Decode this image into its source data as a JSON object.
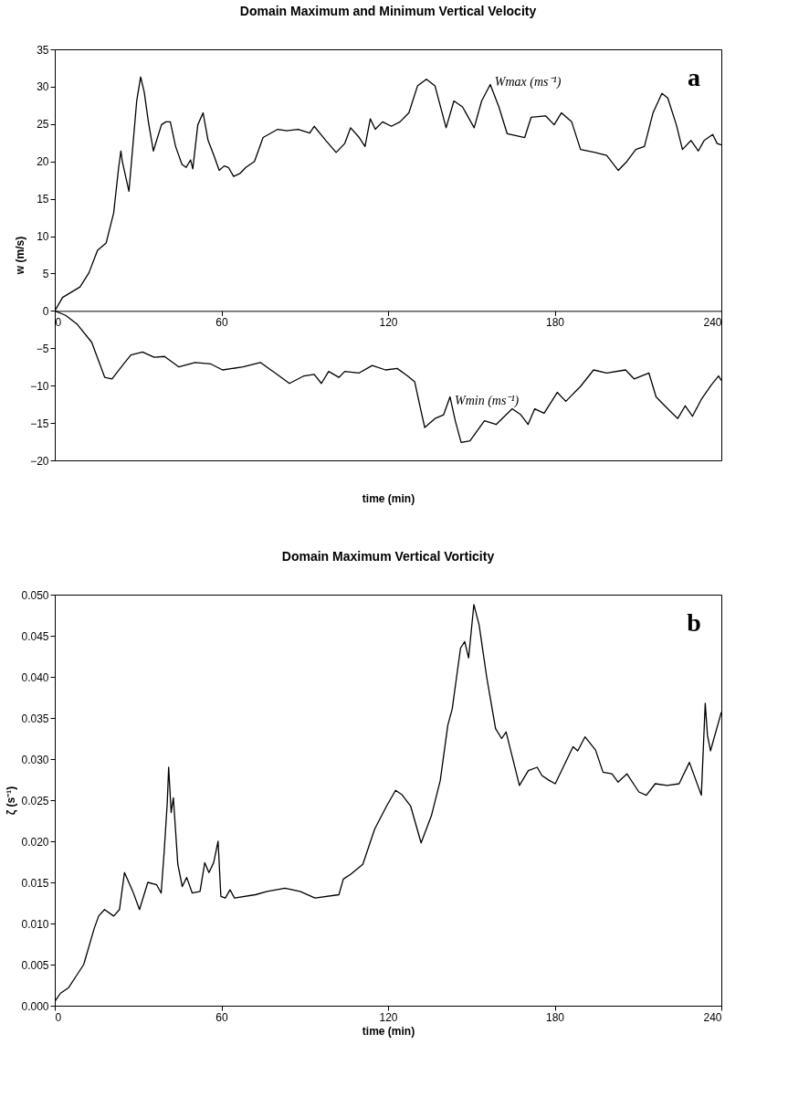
{
  "chart_data": [
    {
      "type": "line",
      "title": "Domain Maximum and Minimum Vertical Velocity",
      "xlabel": "time (min)",
      "ylabel": "w (m/s)",
      "annotations": [
        "a"
      ],
      "xlim": [
        0,
        240
      ],
      "xticks": [
        0,
        60,
        120,
        180,
        240
      ],
      "ylim": [
        -20,
        35
      ],
      "yticks": [
        -20,
        -15,
        -10,
        -5,
        0,
        5,
        10,
        15,
        20,
        25,
        30,
        35
      ],
      "series": [
        {
          "name": "Wmax (ms⁻¹)",
          "color": "#000000",
          "x": [
            0,
            2.8,
            9.1,
            12.3,
            15.4,
            18.5,
            21.2,
            23,
            23.8,
            24.3,
            26.7,
            29.5,
            30.9,
            32.2,
            33.7,
            35.5,
            38.4,
            40,
            41.6,
            43.5,
            45.8,
            47.3,
            48.9,
            49.7,
            51.5,
            53.4,
            55.2,
            57.3,
            59.2,
            61,
            62.5,
            64.4,
            66.7,
            68.8,
            71.9,
            75,
            80.3,
            83.5,
            87.6,
            91.8,
            93.4,
            97.6,
            101.3,
            104.4,
            106.5,
            109.6,
            111.7,
            113.6,
            115.4,
            118,
            121.2,
            124.3,
            127.5,
            130.6,
            133.8,
            136.9,
            140.9,
            143.7,
            146.8,
            151,
            153.7,
            156.8,
            159.9,
            162.9,
            169.2,
            171.5,
            176.7,
            179.8,
            182.4,
            186.1,
            189.3,
            194.5,
            198.7,
            202.9,
            206,
            209.2,
            212.3,
            215.4,
            218.6,
            220.7,
            223.8,
            226,
            229.1,
            231.7,
            233.8,
            236.9,
            238.5,
            240
          ],
          "values": [
            0,
            1.8,
            3.2,
            5.1,
            8.1,
            9.1,
            13.1,
            19.2,
            21.4,
            20,
            16,
            28.1,
            31.3,
            29.3,
            25.3,
            21.4,
            24.9,
            25.3,
            25.3,
            22,
            19.6,
            19.2,
            20.2,
            19,
            24.9,
            26.5,
            22.8,
            20.8,
            18.8,
            19.4,
            19.2,
            18,
            18.4,
            19.2,
            20,
            23.2,
            24.3,
            24.1,
            24.3,
            23.8,
            24.7,
            22.8,
            21.2,
            22.4,
            24.5,
            23.2,
            22,
            25.7,
            24.3,
            25.3,
            24.7,
            25.3,
            26.5,
            30.1,
            31,
            30.1,
            24.5,
            28.1,
            27.3,
            24.5,
            28.1,
            30.3,
            27.3,
            23.7,
            23.2,
            25.9,
            26.1,
            24.9,
            26.5,
            25.3,
            21.6,
            21.2,
            20.8,
            18.8,
            20,
            21.6,
            22,
            26.5,
            29.1,
            28.5,
            24.9,
            21.6,
            22.8,
            21.4,
            22.8,
            23.6,
            22.4,
            22.2
          ]
        },
        {
          "name": "Wmin (ms⁻¹)",
          "color": "#000000",
          "x": [
            0,
            3.9,
            8.1,
            13.3,
            18,
            20.6,
            24.8,
            27.4,
            31.6,
            35.8,
            39.5,
            44.7,
            50.5,
            56.2,
            60.4,
            67.8,
            74,
            79.3,
            84.5,
            89.7,
            93.4,
            96,
            98.6,
            102.3,
            104.4,
            109.6,
            114.3,
            119.1,
            123.3,
            127,
            129.6,
            131.7,
            133.2,
            136.9,
            140,
            142.3,
            144.2,
            146.3,
            149.5,
            154.7,
            158.9,
            164.7,
            167.8,
            170.4,
            172.8,
            176.2,
            180.9,
            184,
            189.3,
            194,
            198.7,
            205.5,
            208.6,
            213.9,
            216.5,
            220.7,
            224.3,
            227,
            229.6,
            232.7,
            236.4,
            239,
            240
          ],
          "values": [
            0,
            -0.6,
            -1.8,
            -4.2,
            -8.9,
            -9.1,
            -7.1,
            -5.9,
            -5.5,
            -6.2,
            -6.1,
            -7.5,
            -6.9,
            -7.1,
            -7.9,
            -7.5,
            -6.9,
            -8.3,
            -9.7,
            -8.7,
            -8.5,
            -9.7,
            -8.1,
            -8.9,
            -8.1,
            -8.3,
            -7.3,
            -7.9,
            -7.7,
            -8.7,
            -9.5,
            -13.1,
            -15.6,
            -14.4,
            -13.9,
            -11.5,
            -14.7,
            -17.6,
            -17.4,
            -14.7,
            -15.2,
            -13.1,
            -13.9,
            -15.2,
            -13.1,
            -13.7,
            -10.9,
            -12.1,
            -10.1,
            -7.9,
            -8.3,
            -7.9,
            -9.1,
            -8.3,
            -11.5,
            -13.1,
            -14.4,
            -12.7,
            -14.1,
            -11.9,
            -9.9,
            -8.7,
            -9.3
          ]
        }
      ]
    },
    {
      "type": "line",
      "title": "Domain Maximum Vertical Vorticity",
      "xlabel": "time (min)",
      "ylabel": "ζ (s⁻¹)",
      "annotations": [
        "b"
      ],
      "xlim": [
        0,
        240
      ],
      "xticks": [
        0,
        60,
        120,
        180,
        240
      ],
      "ylim": [
        0,
        0.05
      ],
      "yticks": [
        {
          "value": 0,
          "label": "0.000"
        },
        {
          "value": 0.005,
          "label": "0.005"
        },
        {
          "value": 0.01,
          "label": "0.010"
        },
        {
          "value": 0.015,
          "label": "0.015"
        },
        {
          "value": 0.02,
          "label": "0.020"
        },
        {
          "value": 0.025,
          "label": "0.025"
        },
        {
          "value": 0.03,
          "label": "0.030"
        },
        {
          "value": 0.035,
          "label": "0.035"
        },
        {
          "value": 0.04,
          "label": "0.040"
        },
        {
          "value": 0.045,
          "label": "0.045"
        },
        {
          "value": 0.05,
          "label": "0.050"
        }
      ],
      "series": [
        {
          "color": "#000000",
          "x": [
            0,
            2,
            5,
            7.5,
            10.4,
            14.2,
            15.8,
            17.9,
            21.2,
            23.3,
            25.1,
            28.1,
            30.5,
            33.5,
            36.7,
            38.3,
            39.4,
            40.5,
            41,
            41.9,
            42.7,
            44.3,
            45.9,
            47.5,
            49.5,
            52.3,
            54,
            55.5,
            57.2,
            58.8,
            59.8,
            61.4,
            63.1,
            64.7,
            72.2,
            76.5,
            82.9,
            88.3,
            93.7,
            102.3,
            103.9,
            106.6,
            110.9,
            115.2,
            119.5,
            122.7,
            124.9,
            128.1,
            131.9,
            135.6,
            138.8,
            141.5,
            143.1,
            146.1,
            147.6,
            149,
            150.9,
            152.8,
            155.5,
            158.7,
            160.9,
            162.5,
            167.3,
            170.5,
            173.7,
            175.4,
            178,
            180.2,
            186.6,
            188.3,
            190.9,
            194.7,
            197.4,
            200.6,
            202.8,
            206,
            210.3,
            213,
            216.2,
            220.5,
            224.8,
            228.5,
            232.8,
            234.2,
            235,
            236.1,
            240
          ],
          "values": [
            0.0005,
            0.0015,
            0.0022,
            0.0035,
            0.005,
            0.0094,
            0.0109,
            0.0117,
            0.0109,
            0.0117,
            0.0162,
            0.0139,
            0.0117,
            0.015,
            0.0147,
            0.0137,
            0.0188,
            0.0247,
            0.029,
            0.0235,
            0.0253,
            0.0172,
            0.0145,
            0.0156,
            0.0137,
            0.0139,
            0.0174,
            0.0162,
            0.0174,
            0.02,
            0.0133,
            0.0131,
            0.0141,
            0.0131,
            0.0135,
            0.0139,
            0.0143,
            0.0139,
            0.0131,
            0.0135,
            0.0154,
            0.016,
            0.0172,
            0.0215,
            0.0243,
            0.0262,
            0.0257,
            0.0243,
            0.0198,
            0.0231,
            0.0274,
            0.0341,
            0.0361,
            0.0435,
            0.0443,
            0.0423,
            0.0488,
            0.0463,
            0.04,
            0.0337,
            0.0325,
            0.0333,
            0.0268,
            0.0286,
            0.029,
            0.028,
            0.0274,
            0.027,
            0.0315,
            0.031,
            0.0327,
            0.0311,
            0.0284,
            0.0282,
            0.0272,
            0.0282,
            0.026,
            0.0256,
            0.027,
            0.0268,
            0.027,
            0.0296,
            0.0256,
            0.0368,
            0.0329,
            0.031,
            0.0357
          ]
        }
      ]
    }
  ]
}
